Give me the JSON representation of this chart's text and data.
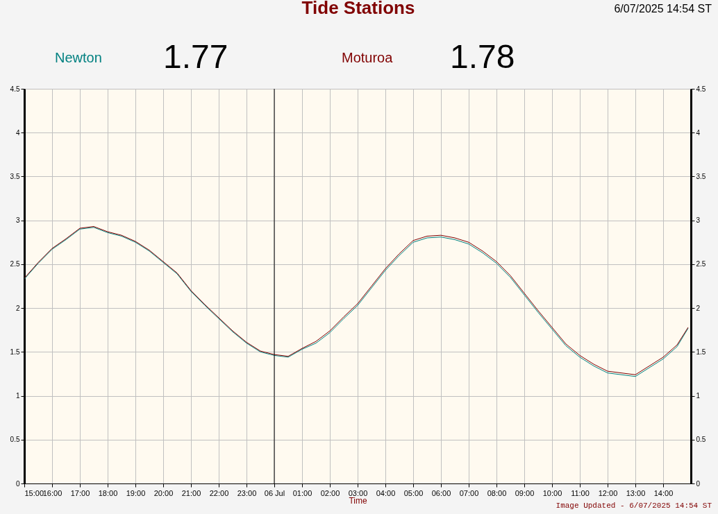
{
  "chart_data": {
    "type": "line",
    "title": "Tide Stations",
    "xlabel": "Time",
    "legend": "top",
    "grid": true,
    "annotations": [
      "6/07/2025 14:54 ST",
      "1.77",
      "1.78",
      "Image Updated - 6/07/2025 14:54 ST"
    ],
    "x": [
      "2025-07-05T15:00",
      "2025-07-05T15:30",
      "2025-07-05T16:00",
      "2025-07-05T16:30",
      "2025-07-05T17:00",
      "2025-07-05T17:30",
      "2025-07-05T18:00",
      "2025-07-05T18:30",
      "2025-07-05T19:00",
      "2025-07-05T19:30",
      "2025-07-05T20:00",
      "2025-07-05T20:30",
      "2025-07-05T21:00",
      "2025-07-05T21:30",
      "2025-07-05T22:00",
      "2025-07-05T22:30",
      "2025-07-05T23:00",
      "2025-07-05T23:30",
      "2025-07-06T00:00",
      "2025-07-06T00:30",
      "2025-07-06T01:00",
      "2025-07-06T01:30",
      "2025-07-06T02:00",
      "2025-07-06T02:30",
      "2025-07-06T03:00",
      "2025-07-06T03:30",
      "2025-07-06T04:00",
      "2025-07-06T04:30",
      "2025-07-06T05:00",
      "2025-07-06T05:30",
      "2025-07-06T06:00",
      "2025-07-06T06:30",
      "2025-07-06T07:00",
      "2025-07-06T07:30",
      "2025-07-06T08:00",
      "2025-07-06T08:30",
      "2025-07-06T09:00",
      "2025-07-06T09:30",
      "2025-07-06T10:00",
      "2025-07-06T10:30",
      "2025-07-06T11:00",
      "2025-07-06T11:30",
      "2025-07-06T12:00",
      "2025-07-06T12:30",
      "2025-07-06T13:00",
      "2025-07-06T13:30",
      "2025-07-06T14:00",
      "2025-07-06T14:30",
      "2025-07-06T14:54"
    ],
    "series": [
      {
        "name": "Newton",
        "color": "#008080",
        "values": [
          2.33,
          2.51,
          2.67,
          2.78,
          2.9,
          2.92,
          2.86,
          2.82,
          2.75,
          2.65,
          2.52,
          2.39,
          2.19,
          2.03,
          1.88,
          1.73,
          1.6,
          1.5,
          1.46,
          1.44,
          1.53,
          1.6,
          1.72,
          1.88,
          2.03,
          2.23,
          2.43,
          2.6,
          2.75,
          2.8,
          2.81,
          2.78,
          2.73,
          2.63,
          2.51,
          2.35,
          2.15,
          1.95,
          1.76,
          1.57,
          1.44,
          1.34,
          1.26,
          1.24,
          1.22,
          1.32,
          1.42,
          1.56,
          1.77
        ]
      },
      {
        "name": "Moturoa",
        "color": "#800000",
        "values": [
          2.34,
          2.52,
          2.68,
          2.79,
          2.91,
          2.93,
          2.87,
          2.83,
          2.76,
          2.66,
          2.53,
          2.4,
          2.2,
          2.04,
          1.89,
          1.74,
          1.61,
          1.51,
          1.47,
          1.45,
          1.54,
          1.62,
          1.74,
          1.9,
          2.05,
          2.25,
          2.45,
          2.62,
          2.77,
          2.82,
          2.83,
          2.8,
          2.75,
          2.65,
          2.53,
          2.37,
          2.17,
          1.97,
          1.78,
          1.59,
          1.46,
          1.36,
          1.28,
          1.26,
          1.24,
          1.34,
          1.44,
          1.58,
          1.78
        ]
      }
    ],
    "xlim": [
      "2025-07-05T15:00",
      "2025-07-06T15:00"
    ],
    "xticks": [
      {
        "value": "2025-07-05T15:00",
        "label": "15:00"
      },
      {
        "value": "2025-07-05T16:00",
        "label": "16:00"
      },
      {
        "value": "2025-07-05T17:00",
        "label": "17:00"
      },
      {
        "value": "2025-07-05T18:00",
        "label": "18:00"
      },
      {
        "value": "2025-07-05T19:00",
        "label": "19:00"
      },
      {
        "value": "2025-07-05T20:00",
        "label": "20:00"
      },
      {
        "value": "2025-07-05T21:00",
        "label": "21:00"
      },
      {
        "value": "2025-07-05T22:00",
        "label": "22:00"
      },
      {
        "value": "2025-07-05T23:00",
        "label": "23:00"
      },
      {
        "value": "2025-07-06T00:00",
        "label": "06 Jul"
      },
      {
        "value": "2025-07-06T01:00",
        "label": "01:00"
      },
      {
        "value": "2025-07-06T02:00",
        "label": "02:00"
      },
      {
        "value": "2025-07-06T03:00",
        "label": "03:00"
      },
      {
        "value": "2025-07-06T04:00",
        "label": "04:00"
      },
      {
        "value": "2025-07-06T05:00",
        "label": "05:00"
      },
      {
        "value": "2025-07-06T06:00",
        "label": "06:00"
      },
      {
        "value": "2025-07-06T07:00",
        "label": "07:00"
      },
      {
        "value": "2025-07-06T08:00",
        "label": "08:00"
      },
      {
        "value": "2025-07-06T09:00",
        "label": "09:00"
      },
      {
        "value": "2025-07-06T10:00",
        "label": "10:00"
      },
      {
        "value": "2025-07-06T11:00",
        "label": "11:00"
      },
      {
        "value": "2025-07-06T12:00",
        "label": "12:00"
      },
      {
        "value": "2025-07-06T13:00",
        "label": "13:00"
      },
      {
        "value": "2025-07-06T14:00",
        "label": "14:00"
      }
    ],
    "ylim": [
      0,
      4.5
    ],
    "yticks": [
      0,
      0.5,
      1,
      1.5,
      2,
      2.5,
      3,
      3.5,
      4,
      4.5
    ],
    "y2lim": [
      0,
      4.5
    ],
    "y2ticks": [
      0,
      0.5,
      1,
      1.5,
      2,
      2.5,
      3,
      3.5,
      4,
      4.5
    ],
    "ref_lines": [
      {
        "axis": "x",
        "value": "2025-07-06T00:00",
        "color": "#000000"
      }
    ]
  }
}
